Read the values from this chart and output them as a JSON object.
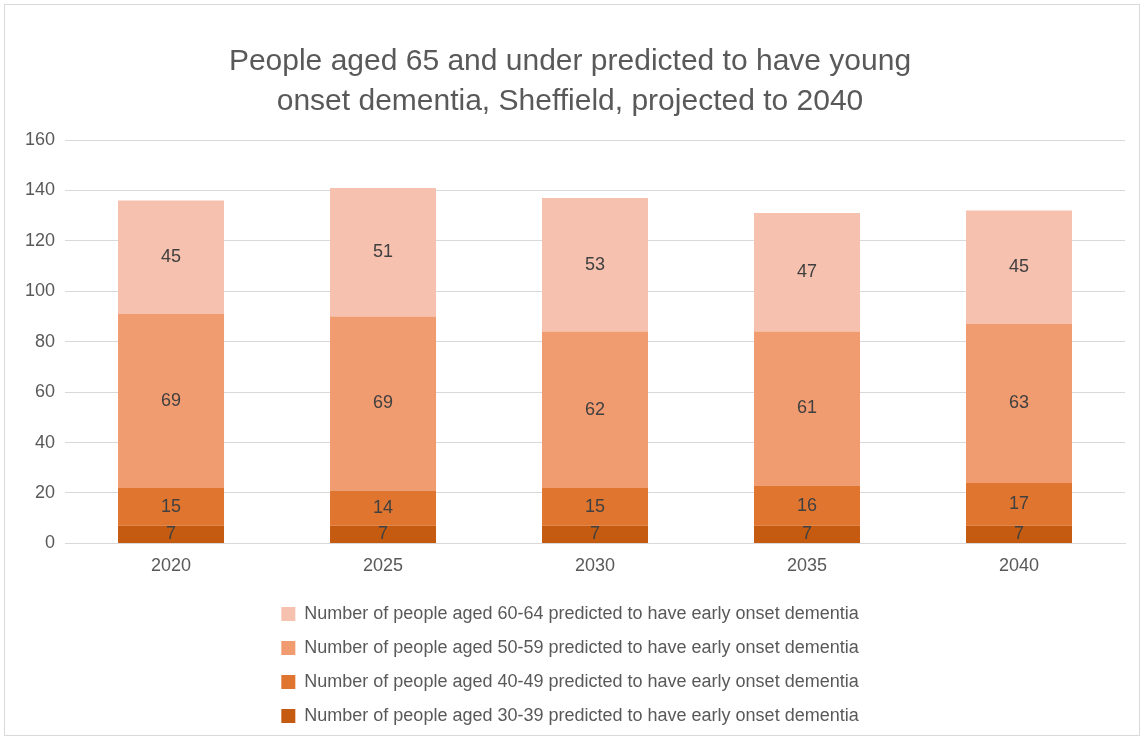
{
  "chart_data": {
    "type": "bar",
    "title": "People aged 65 and under predicted to have young onset dementia, Sheffield, projected to 2040",
    "categories": [
      "2020",
      "2025",
      "2030",
      "2035",
      "2040"
    ],
    "series": [
      {
        "name": "Number of people aged 30-39 predicted to have early onset dementia",
        "color": "#c55a11",
        "values": [
          7,
          7,
          7,
          7,
          7
        ]
      },
      {
        "name": "Number of people aged 40-49 predicted to have early onset dementia",
        "color": "#e07530",
        "values": [
          15,
          14,
          15,
          16,
          17
        ]
      },
      {
        "name": "Number of people aged 50-59 predicted to have early onset dementia",
        "color": "#f09b70",
        "values": [
          69,
          69,
          62,
          61,
          63
        ]
      },
      {
        "name": "Number of people aged 60-64 predicted to have early onset dementia",
        "color": "#f6c1ae",
        "values": [
          45,
          51,
          53,
          47,
          45
        ]
      }
    ],
    "stacked": true,
    "ylim": [
      0,
      160
    ],
    "yticks": [
      0,
      20,
      40,
      60,
      80,
      100,
      120,
      140,
      160
    ],
    "grid": "y",
    "legend": "bottom",
    "data_labels": true
  }
}
